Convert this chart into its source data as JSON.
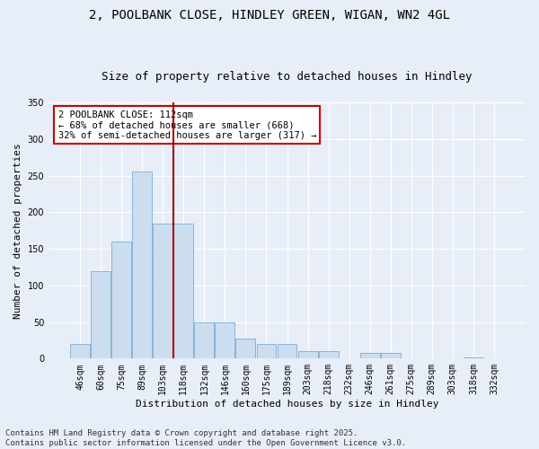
{
  "title": "2, POOLBANK CLOSE, HINDLEY GREEN, WIGAN, WN2 4GL",
  "subtitle": "Size of property relative to detached houses in Hindley",
  "xlabel": "Distribution of detached houses by size in Hindley",
  "ylabel": "Number of detached properties",
  "categories": [
    "46sqm",
    "60sqm",
    "75sqm",
    "89sqm",
    "103sqm",
    "118sqm",
    "132sqm",
    "146sqm",
    "160sqm",
    "175sqm",
    "189sqm",
    "203sqm",
    "218sqm",
    "232sqm",
    "246sqm",
    "261sqm",
    "275sqm",
    "289sqm",
    "303sqm",
    "318sqm",
    "332sqm"
  ],
  "values": [
    20,
    120,
    160,
    255,
    185,
    185,
    50,
    50,
    28,
    20,
    20,
    10,
    10,
    0,
    8,
    8,
    0,
    0,
    0,
    2,
    1
  ],
  "bar_color": "#ccddf0",
  "bar_edge_color": "#7aaed4",
  "vline_color": "#aa0000",
  "annotation_text": "2 POOLBANK CLOSE: 112sqm\n← 68% of detached houses are smaller (668)\n32% of semi-detached houses are larger (317) →",
  "annotation_box_color": "#ffffff",
  "annotation_box_edge": "#cc0000",
  "ylim": [
    0,
    350
  ],
  "yticks": [
    0,
    50,
    100,
    150,
    200,
    250,
    300,
    350
  ],
  "background_color": "#e8eef8",
  "grid_color": "#ffffff",
  "footer_line1": "Contains HM Land Registry data © Crown copyright and database right 2025.",
  "footer_line2": "Contains public sector information licensed under the Open Government Licence v3.0.",
  "title_fontsize": 10,
  "subtitle_fontsize": 9,
  "axis_label_fontsize": 8,
  "tick_fontsize": 7,
  "annotation_fontsize": 7.5,
  "footer_fontsize": 6.5
}
